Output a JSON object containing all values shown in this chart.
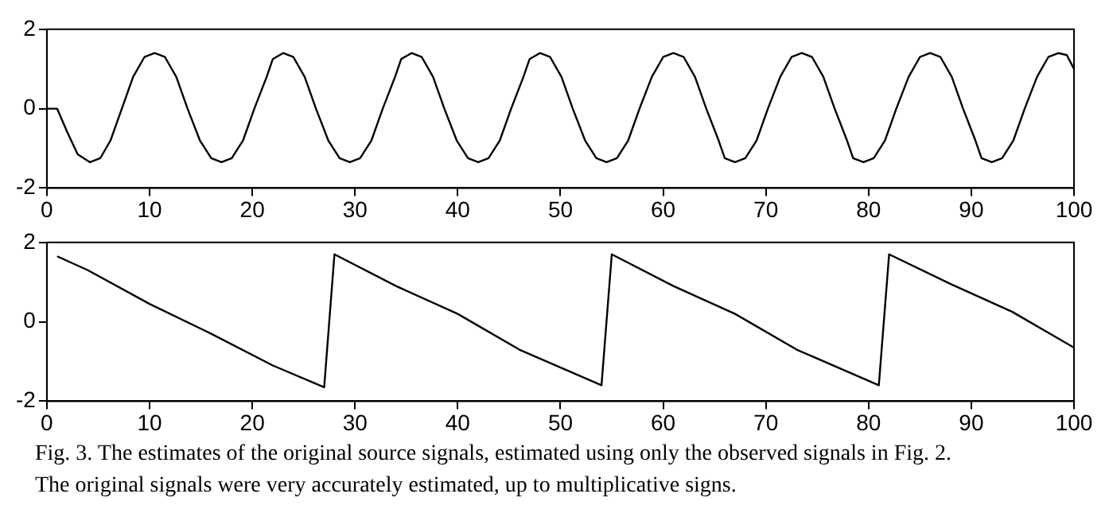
{
  "chart_data": [
    {
      "type": "line",
      "xlim": [
        0,
        100
      ],
      "xticks": [
        0,
        10,
        20,
        30,
        40,
        50,
        60,
        70,
        80,
        90,
        100
      ],
      "ylim": [
        -2,
        2
      ],
      "yticks": [
        -2,
        0,
        2
      ],
      "grid": false,
      "legend": false,
      "marker": "none",
      "line_style": "solid",
      "series": [
        {
          "color": "#000000",
          "x": [
            0,
            1,
            2,
            3,
            4.2,
            5.2,
            6.2,
            7.3,
            8.4,
            9.5,
            10.5,
            11.5,
            12.6,
            13.7,
            14.9,
            16,
            17,
            18,
            19.1,
            20.2,
            21.4,
            22,
            23,
            24,
            25.1,
            26.2,
            27.4,
            28.5,
            29.5,
            30.5,
            31.6,
            32.7,
            33.9,
            34.5,
            35.5,
            36.5,
            37.6,
            38.7,
            39.9,
            41,
            42,
            43,
            44.1,
            45.2,
            46.4,
            47,
            48,
            49,
            50.1,
            51.2,
            52.4,
            53.5,
            54.5,
            55.5,
            56.6,
            57.7,
            58.9,
            60,
            61,
            62,
            63.1,
            64.2,
            65.4,
            66,
            67,
            68,
            69.1,
            70.2,
            71.4,
            72.5,
            73.5,
            74.5,
            75.6,
            76.7,
            77.9,
            78.5,
            79.5,
            80.5,
            81.6,
            82.7,
            83.9,
            85,
            86,
            87,
            88.1,
            89.2,
            90.4,
            91,
            92,
            93,
            94.1,
            95.2,
            96.4,
            97.5,
            98.5,
            99.3,
            100
          ],
          "values": [
            0,
            0,
            -0.6,
            -1.15,
            -1.35,
            -1.25,
            -0.8,
            0,
            0.8,
            1.3,
            1.4,
            1.3,
            0.8,
            0,
            -0.8,
            -1.25,
            -1.35,
            -1.25,
            -0.8,
            0,
            0.8,
            1.25,
            1.4,
            1.3,
            0.8,
            0,
            -0.8,
            -1.25,
            -1.35,
            -1.25,
            -0.8,
            0,
            0.8,
            1.25,
            1.4,
            1.3,
            0.8,
            0,
            -0.8,
            -1.25,
            -1.35,
            -1.25,
            -0.8,
            0,
            0.8,
            1.25,
            1.4,
            1.3,
            0.8,
            0,
            -0.8,
            -1.25,
            -1.35,
            -1.25,
            -0.8,
            0,
            0.8,
            1.3,
            1.4,
            1.3,
            0.8,
            0,
            -0.8,
            -1.25,
            -1.35,
            -1.25,
            -0.8,
            0,
            0.8,
            1.3,
            1.4,
            1.3,
            0.8,
            0,
            -0.8,
            -1.25,
            -1.35,
            -1.25,
            -0.8,
            0,
            0.8,
            1.3,
            1.4,
            1.3,
            0.8,
            0,
            -0.8,
            -1.25,
            -1.35,
            -1.25,
            -0.8,
            0,
            0.8,
            1.3,
            1.4,
            1.35,
            1.0
          ]
        }
      ]
    },
    {
      "type": "line",
      "xlim": [
        0,
        100
      ],
      "xticks": [
        0,
        10,
        20,
        30,
        40,
        50,
        60,
        70,
        80,
        90,
        100
      ],
      "ylim": [
        -2,
        2
      ],
      "yticks": [
        -2,
        0,
        2
      ],
      "grid": false,
      "legend": false,
      "marker": "none",
      "line_style": "solid",
      "series": [
        {
          "color": "#000000",
          "x": [
            1,
            4,
            10,
            16,
            22,
            27,
            28,
            34,
            40,
            46,
            54,
            55,
            61,
            67,
            73,
            81,
            82,
            88,
            94,
            100
          ],
          "values": [
            1.65,
            1.3,
            0.45,
            -0.3,
            -1.1,
            -1.65,
            1.7,
            0.9,
            0.2,
            -0.7,
            -1.6,
            1.7,
            0.9,
            0.2,
            -0.7,
            -1.6,
            1.7,
            0.95,
            0.25,
            -0.65
          ]
        }
      ],
      "annotations": [
        "Fig. 3. The estimates of the original source signals, estimated using only the observed signals in Fig. 2.",
        "The original signals were very accurately estimated, up to multiplicative signs."
      ]
    }
  ]
}
